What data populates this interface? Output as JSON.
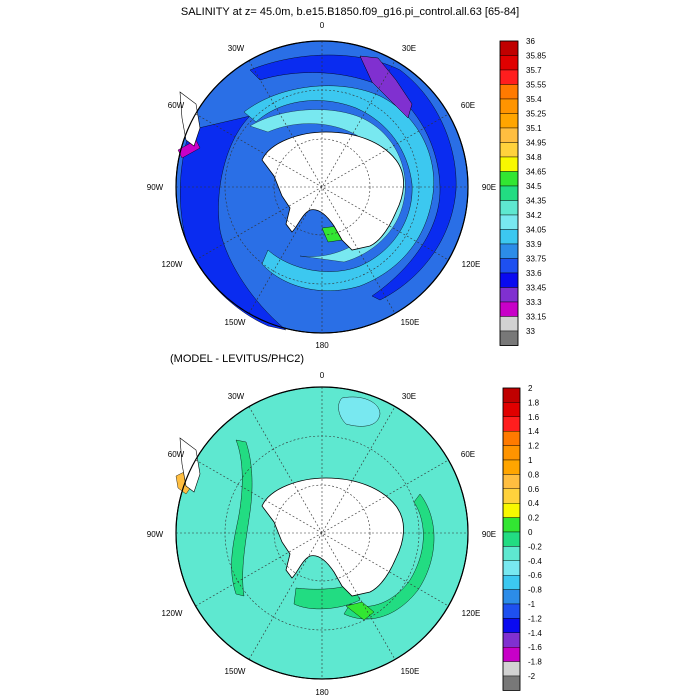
{
  "panels": [
    {
      "title": "SALINITY at z=  45.0m, b.e15.B1850.f09_g16.pi_control.all.63 [65-84]",
      "lon_labels": [
        "0",
        "30E",
        "60E",
        "90E",
        "120E",
        "150E",
        "180",
        "150W",
        "120W",
        "90W",
        "60W",
        "30W"
      ],
      "colorbar": {
        "levels": [
          "36",
          "35.85",
          "35.7",
          "35.55",
          "35.4",
          "35.25",
          "35.1",
          "34.95",
          "34.8",
          "34.65",
          "34.5",
          "34.35",
          "34.2",
          "34.05",
          "33.9",
          "33.75",
          "33.6",
          "33.45",
          "33.3",
          "33.15",
          "33"
        ],
        "colors": [
          "#c00000",
          "#e00000",
          "#ff1e1e",
          "#ff7a00",
          "#ff9400",
          "#ffa500",
          "#ffbe40",
          "#ffd23c",
          "#f8f800",
          "#32e632",
          "#22dc82",
          "#5ee8d0",
          "#78e8f0",
          "#3cc8f0",
          "#2c8ce8",
          "#1e50f0",
          "#0a0af0",
          "#8030d0",
          "#c800c8",
          "#d2d2d2",
          "#787878"
        ]
      }
    },
    {
      "title": "(MODEL - LEVITUS/PHC2)",
      "lon_labels": [
        "0",
        "30E",
        "60E",
        "90E",
        "120E",
        "150E",
        "180",
        "150W",
        "120W",
        "90W",
        "60W",
        "30W"
      ],
      "colorbar": {
        "levels": [
          "2",
          "1.8",
          "1.6",
          "1.4",
          "1.2",
          "1",
          "0.8",
          "0.6",
          "0.4",
          "0.2",
          "0",
          "-0.2",
          "-0.4",
          "-0.6",
          "-0.8",
          "-1",
          "-1.2",
          "-1.4",
          "-1.6",
          "-1.8",
          "-2"
        ],
        "colors": [
          "#c00000",
          "#e00000",
          "#ff1e1e",
          "#ff7a00",
          "#ff9400",
          "#ffa500",
          "#ffbe40",
          "#ffd23c",
          "#f8f800",
          "#32e632",
          "#22dc82",
          "#5ee8d0",
          "#78e8f0",
          "#3cc8f0",
          "#2c8ce8",
          "#1e50f0",
          "#0a0af0",
          "#8030d0",
          "#c800c8",
          "#d2d2d2",
          "#787878"
        ]
      }
    }
  ]
}
